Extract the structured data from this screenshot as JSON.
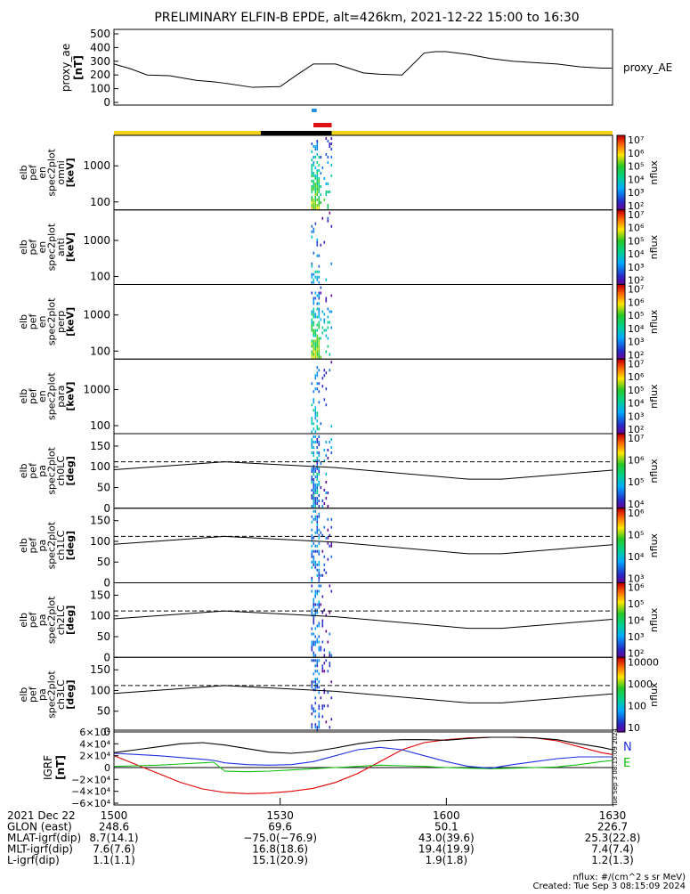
{
  "title": "PRELIMINARY ELFIN-B EPDE, alt=426km, 2021-12-22 15:00 to 16:30",
  "colors": {
    "sunlit": "#f2d21b",
    "eclipse": "#000000",
    "red_bar": "#e01010",
    "blue_bar": "#1f8fe0",
    "bx": "#e00000",
    "by": "#10c010",
    "bz": "#2030e0"
  },
  "chart_data": [
    {
      "type": "line",
      "panel": "proxy_ae",
      "ylabel": "proxy_ae [nT]",
      "yticks": [
        0,
        100,
        200,
        300,
        400,
        500
      ],
      "ylim": [
        0,
        500
      ],
      "series": [
        {
          "name": "proxy_AE",
          "x": [
            0,
            3,
            6,
            10,
            15,
            18,
            20,
            25,
            30,
            33,
            36,
            40,
            45,
            48,
            52,
            56,
            58,
            60,
            64,
            68,
            72,
            76,
            80,
            84,
            88,
            90
          ],
          "values": [
            280,
            245,
            200,
            195,
            160,
            150,
            140,
            110,
            115,
            200,
            280,
            280,
            215,
            205,
            200,
            360,
            370,
            370,
            350,
            320,
            300,
            290,
            280,
            260,
            250,
            250
          ]
        }
      ]
    },
    {
      "type": "heatmap",
      "panel": "omni",
      "ylabel": "elb pef en spec2plot omni [keV]",
      "yticks": [
        "1000",
        "100"
      ],
      "ylim": [
        60,
        7000
      ],
      "colorbar": {
        "label": "nflux",
        "ticks": [
          "10⁷",
          "10⁶",
          "10⁵",
          "10⁴",
          "10³",
          "10²"
        ]
      }
    },
    {
      "type": "heatmap",
      "panel": "anti",
      "ylabel": "elb pef en spec2plot anti [keV]",
      "yticks": [
        "1000",
        "100"
      ],
      "ylim": [
        60,
        7000
      ],
      "colorbar": {
        "label": "nflux",
        "ticks": [
          "10⁷",
          "10⁶",
          "10⁵",
          "10⁴",
          "10³",
          "10²"
        ]
      }
    },
    {
      "type": "heatmap",
      "panel": "perp",
      "ylabel": "elb pef en spec2plot perp [keV]",
      "yticks": [
        "1000",
        "100"
      ],
      "ylim": [
        60,
        7000
      ],
      "colorbar": {
        "label": "nflux",
        "ticks": [
          "10⁷",
          "10⁶",
          "10⁵",
          "10⁴",
          "10³",
          "10²"
        ]
      }
    },
    {
      "type": "heatmap",
      "panel": "para",
      "ylabel": "elb pef en spec2plot para [keV]",
      "yticks": [
        "1000",
        "100"
      ],
      "ylim": [
        60,
        7000
      ],
      "colorbar": {
        "label": "nflux",
        "ticks": [
          "10⁷",
          "10⁶",
          "10⁵",
          "10⁴",
          "10³",
          "10²"
        ]
      }
    },
    {
      "type": "heatmap",
      "panel": "ch0LC",
      "ylabel": "elb pef pa spec2plot ch0LC [deg]",
      "yticks": [
        "150",
        "100",
        "50",
        "0"
      ],
      "ylim": [
        0,
        180
      ],
      "colorbar": {
        "label": "nflux",
        "ticks": [
          "10⁷",
          "10⁶",
          "10⁵",
          "10⁴"
        ]
      }
    },
    {
      "type": "heatmap",
      "panel": "ch1LC",
      "ylabel": "elb pef pa spec2plot ch1LC [deg]",
      "yticks": [
        "150",
        "100",
        "50",
        "0"
      ],
      "ylim": [
        0,
        180
      ],
      "colorbar": {
        "label": "nflux",
        "ticks": [
          "10⁶",
          "10⁵",
          "10⁴",
          "10³"
        ]
      }
    },
    {
      "type": "heatmap",
      "panel": "ch2LC",
      "ylabel": "elb pef pa spec2plot ch2LC [deg]",
      "yticks": [
        "150",
        "100",
        "50",
        "0"
      ],
      "ylim": [
        0,
        180
      ],
      "colorbar": {
        "label": "nflux",
        "ticks": [
          "10⁶",
          "10⁵",
          "10⁴",
          "10³",
          "10²"
        ]
      }
    },
    {
      "type": "heatmap",
      "panel": "ch3LC",
      "ylabel": "elb pef pa spec2plot ch3LC [deg]",
      "yticks": [
        "150",
        "100",
        "50",
        "0"
      ],
      "ylim": [
        0,
        180
      ],
      "colorbar": {
        "label": "nflux",
        "ticks": [
          "10000",
          "1000",
          "100",
          "10"
        ]
      }
    },
    {
      "type": "line",
      "panel": "IGRF",
      "ylabel": "IGRF [nT]",
      "yticks": [
        "6×10⁴",
        "4×10⁴",
        "2×10⁴",
        "0",
        "−2×10⁴",
        "−4×10⁴",
        "−6×10⁴"
      ],
      "ylim": [
        -60000,
        60000
      ],
      "series": [
        {
          "name": "N",
          "color": "bx",
          "x": [
            0,
            4,
            8,
            12,
            16,
            20,
            24,
            28,
            32,
            36,
            40,
            44,
            48,
            52,
            56,
            60,
            64,
            68,
            72,
            76,
            80,
            84,
            88,
            90
          ],
          "values": [
            20000,
            5000,
            -10000,
            -25000,
            -36000,
            -42000,
            -44000,
            -43000,
            -40000,
            -35000,
            -25000,
            -10000,
            10000,
            30000,
            42000,
            47000,
            50000,
            51000,
            51000,
            50000,
            45000,
            35000,
            25000,
            22000
          ]
        },
        {
          "name": "E",
          "color": "by",
          "x": [
            0,
            4,
            8,
            12,
            16,
            18,
            20,
            24,
            28,
            32,
            36,
            40,
            44,
            48,
            52,
            56,
            60,
            64,
            68,
            72,
            76,
            80,
            84,
            88,
            90
          ],
          "values": [
            2000,
            3000,
            4000,
            6000,
            8000,
            9000,
            -6000,
            -7000,
            -6000,
            -4000,
            -2000,
            0,
            2000,
            4000,
            3000,
            2000,
            0,
            -1000,
            -2000,
            -1000,
            0,
            1000,
            5000,
            10000,
            12000
          ]
        },
        {
          "name": "",
          "color": "bz",
          "x": [
            0,
            4,
            8,
            12,
            16,
            18,
            20,
            24,
            28,
            32,
            36,
            40,
            44,
            48,
            52,
            56,
            60,
            64,
            68,
            72,
            76,
            80,
            84,
            88,
            90
          ],
          "values": [
            24000,
            22000,
            20000,
            17000,
            14000,
            12000,
            8000,
            5000,
            4000,
            5000,
            10000,
            20000,
            30000,
            34000,
            30000,
            20000,
            10000,
            2000,
            -1000,
            5000,
            10000,
            15000,
            18000,
            18000,
            18000
          ]
        },
        {
          "name": "",
          "color": "black",
          "x": [
            0,
            4,
            8,
            12,
            16,
            20,
            24,
            28,
            32,
            36,
            40,
            44,
            48,
            52,
            56,
            60,
            64,
            68,
            72,
            76,
            80,
            84,
            88,
            90
          ],
          "values": [
            25000,
            30000,
            35000,
            40000,
            42000,
            38000,
            32000,
            26000,
            24000,
            27000,
            33000,
            40000,
            45000,
            47000,
            47000,
            46000,
            49000,
            51000,
            51000,
            50000,
            47000,
            40000,
            34000,
            30000
          ]
        }
      ]
    }
  ],
  "pa_tracks": {
    "upper_dashed": 112,
    "lower_x": [
      0,
      20,
      40,
      64,
      70,
      90
    ],
    "lower_y": [
      93,
      112,
      98,
      70,
      70,
      92
    ]
  },
  "legend_labels": {
    "proxy": "proxy_AE",
    "n": "N",
    "e": "E"
  },
  "footer": {
    "rows": [
      {
        "label": "2021 Dec 22",
        "values": [
          "1500",
          "1530",
          "1600",
          "1630"
        ]
      },
      {
        "label": "GLON (east)",
        "values": [
          "248.6",
          "69.6",
          "50.1",
          "226.7"
        ]
      },
      {
        "label": "MLAT-igrf(dip)",
        "values": [
          "8.7(14.1)",
          "−75.0(−76.9)",
          "43.0(39.6)",
          "25.3(22.8)"
        ]
      },
      {
        "label": "MLT-igrf(dip)",
        "values": [
          "7.6(7.6)",
          "16.8(18.6)",
          "19.4(19.9)",
          "7.4(7.4)"
        ]
      },
      {
        "label": "L-igrf(dip)",
        "values": [
          "1.1(1.1)",
          "15.1(20.9)",
          "1.9(1.8)",
          "1.2(1.3)"
        ]
      }
    ],
    "units_note": "nflux: #/(cm^2 s sr MeV)",
    "created": "Created: Tue Sep  3 08:15:09 2024",
    "stamp": "Tue Sep  3 08:15:09 2024"
  }
}
